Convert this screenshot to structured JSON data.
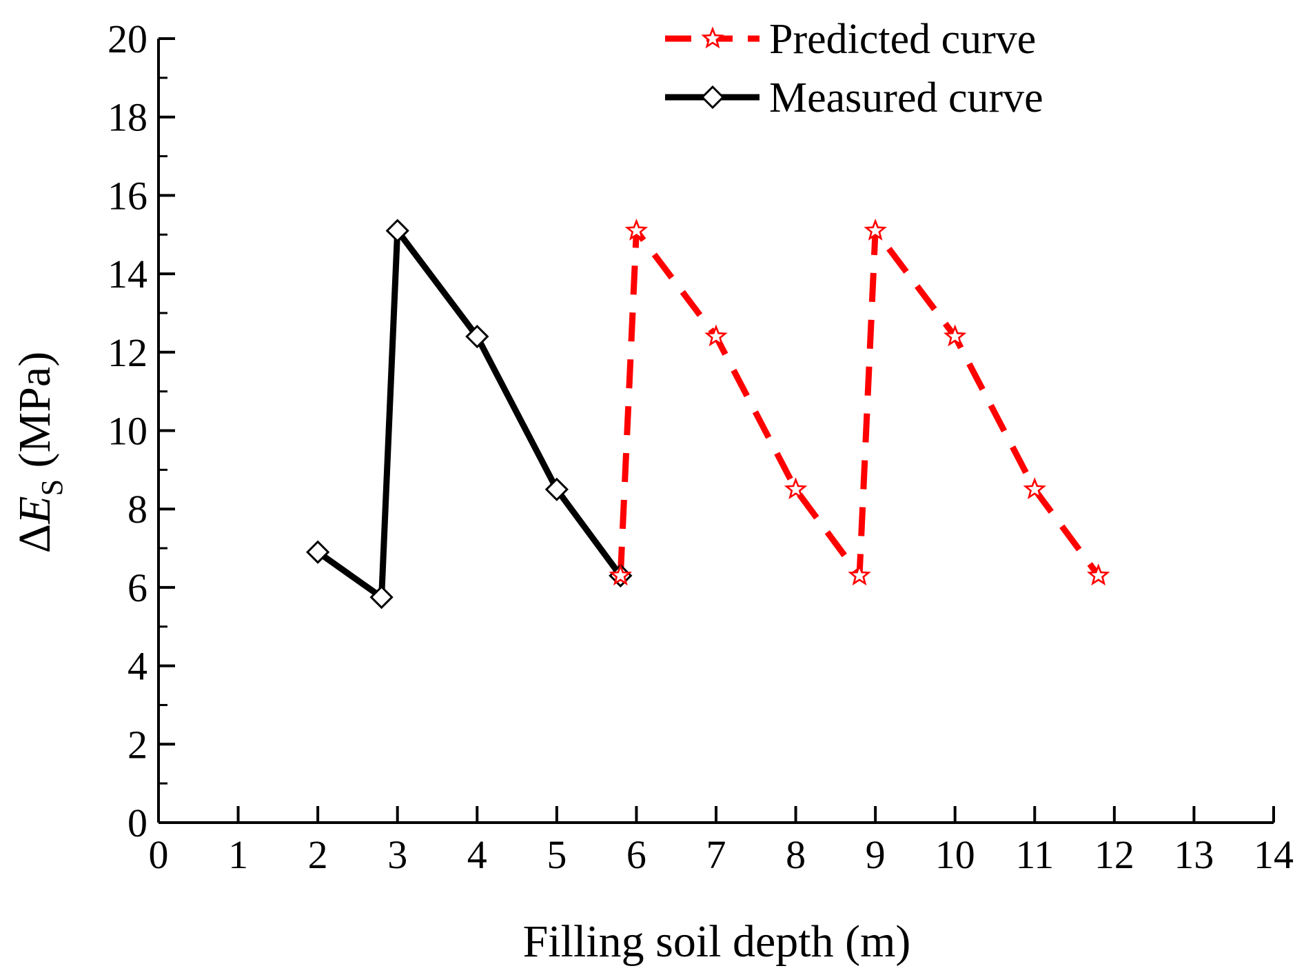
{
  "chart_data": {
    "type": "line",
    "title": "",
    "xlabel": "Filling soil depth (m)",
    "ylabel": {
      "delta": "Δ",
      "symbol": "E",
      "subscript": "S",
      "unit": " (MPa)"
    },
    "xlim": [
      0,
      14
    ],
    "ylim": [
      0,
      20
    ],
    "x_origin_label": "0",
    "xticks": [
      0,
      1,
      2,
      3,
      4,
      5,
      6,
      7,
      8,
      9,
      10,
      11,
      12,
      13,
      14
    ],
    "xtick_labels": [
      "0",
      "1",
      "2",
      "3",
      "4",
      "5",
      "6",
      "7",
      "8",
      "9",
      "10",
      "11",
      "12",
      "13",
      "14"
    ],
    "yticks": [
      0,
      2,
      4,
      6,
      8,
      10,
      12,
      14,
      16,
      18,
      20
    ],
    "ytick_labels": [
      "0",
      "2",
      "4",
      "6",
      "8",
      "10",
      "12",
      "14",
      "16",
      "18",
      "20"
    ],
    "grid": false,
    "legend_position": "top-right",
    "series": [
      {
        "name": "Predicted curve",
        "color": "#ff0000",
        "line_style": "dashed",
        "marker": "star",
        "x": [
          5.8,
          6,
          7,
          8,
          8.8,
          9,
          10,
          11,
          11.8
        ],
        "y": [
          6.3,
          15.1,
          12.4,
          8.5,
          6.3,
          15.1,
          12.4,
          8.5,
          6.3
        ]
      },
      {
        "name": "Measured curve",
        "color": "#000000",
        "line_style": "solid",
        "marker": "diamond",
        "x": [
          2,
          2.8,
          3,
          4,
          5,
          5.8
        ],
        "y": [
          6.9,
          5.75,
          15.1,
          12.4,
          8.5,
          6.3
        ]
      }
    ]
  }
}
